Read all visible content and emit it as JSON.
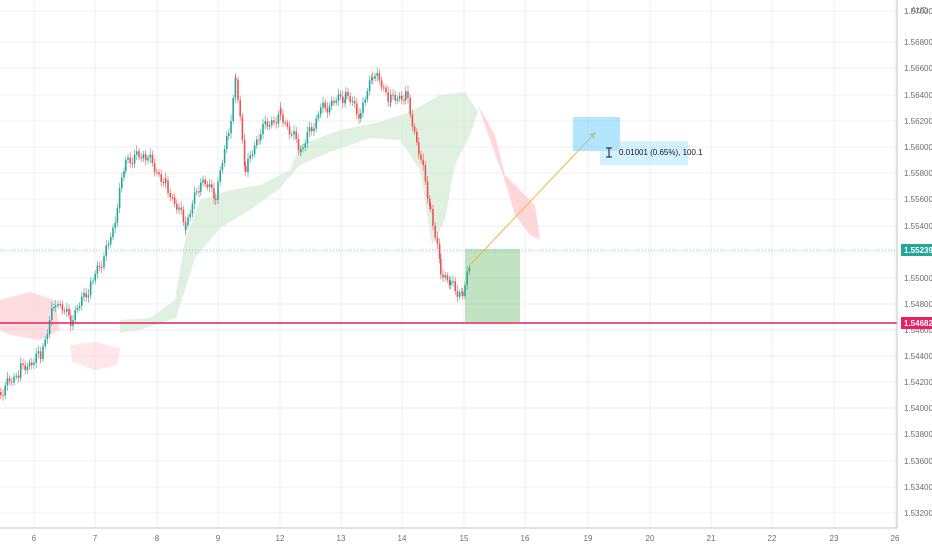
{
  "currency_label": "AUD",
  "price_axis": {
    "labels": [
      "1.57000",
      "1.56800",
      "1.56600",
      "1.56400",
      "1.56200",
      "1.56000",
      "1.55800",
      "1.55600",
      "1.55400",
      "1.55200",
      "1.55000",
      "1.54800",
      "1.54600",
      "1.54400",
      "1.54200",
      "1.54000",
      "1.53800",
      "1.53600",
      "1.53400",
      "1.53200"
    ]
  },
  "time_axis": {
    "labels": [
      "6",
      "7",
      "8",
      "9",
      "12",
      "13",
      "14",
      "15",
      "16",
      "19",
      "20",
      "21",
      "22",
      "23",
      "26"
    ]
  },
  "current_price": {
    "value": "1.55239",
    "color": "#26a69a"
  },
  "horizontal_line": {
    "value": "1.54682",
    "color": "#e91e63"
  },
  "measure_tool": {
    "text": "0.01001 (0.65%), 100.1",
    "icon": "measure-icon"
  },
  "colors": {
    "grid": "#eceff2",
    "candle_up": "#26a69a",
    "candle_down": "#ef5350",
    "cloud_green": "#c8e6c9",
    "cloud_red": "#ffcdd2",
    "long_target_zone": "#4caf50",
    "arrow": "#f5b342",
    "measure_box": "#b3e5fc"
  }
}
